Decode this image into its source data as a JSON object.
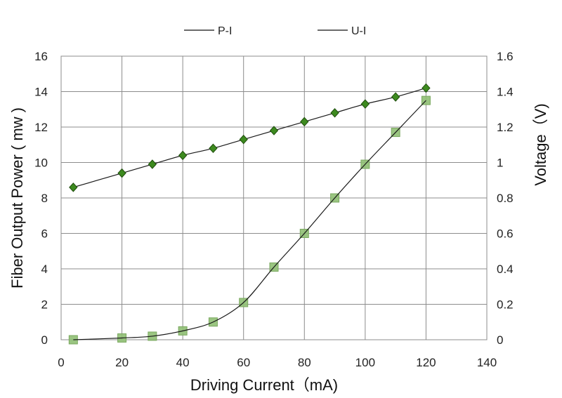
{
  "chart_data": {
    "type": "line",
    "xlabel": "Driving Current（mA)",
    "ylabel_left": "Fiber Output Power ( mw )",
    "ylabel_right": "Voltage（V)",
    "xlim": [
      0,
      140
    ],
    "ylim_left": [
      0,
      16
    ],
    "ylim_right": [
      0,
      1.6
    ],
    "x_ticks": [
      0,
      20,
      40,
      60,
      80,
      100,
      120,
      140
    ],
    "y_left_ticks": [
      0,
      2,
      4,
      6,
      8,
      10,
      12,
      14,
      16
    ],
    "y_right_ticks": [
      "0",
      "0.2",
      "0.4",
      "0.6",
      "0.8",
      "1",
      "1.2",
      "1.4",
      "1.6"
    ],
    "y_right_values": [
      0,
      0.2,
      0.4,
      0.6,
      0.8,
      1,
      1.2,
      1.4,
      1.6
    ],
    "grid": true,
    "legend_position": "top-center",
    "legend": [
      "P-I",
      "U-I"
    ],
    "series": [
      {
        "name": "P-I",
        "axis": "left",
        "marker": "square",
        "marker_color": "#8fbf73",
        "x": [
          4,
          20,
          30,
          40,
          50,
          60,
          70,
          80,
          90,
          100,
          110,
          120
        ],
        "y": [
          0.0,
          0.1,
          0.2,
          0.5,
          1.0,
          2.1,
          4.1,
          6.0,
          8.0,
          9.9,
          11.7,
          13.5
        ]
      },
      {
        "name": "U-I",
        "axis": "right",
        "marker": "diamond",
        "marker_color": "#3d8a1f",
        "x": [
          4,
          20,
          30,
          40,
          50,
          60,
          70,
          80,
          90,
          100,
          110,
          120
        ],
        "y": [
          0.86,
          0.94,
          0.99,
          1.04,
          1.08,
          1.13,
          1.18,
          1.23,
          1.28,
          1.33,
          1.37,
          1.42
        ]
      }
    ]
  }
}
